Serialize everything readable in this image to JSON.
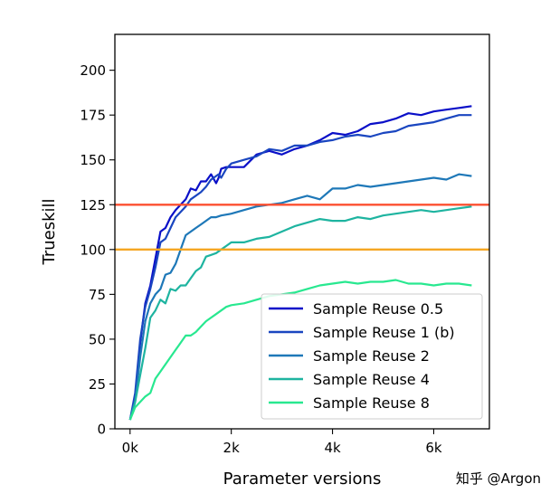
{
  "watermark": "知乎 @Argon",
  "chart_data": {
    "type": "line",
    "title": "",
    "xlabel": "Parameter versions",
    "ylabel": "Trueskill",
    "xlim": [
      -300,
      7100
    ],
    "ylim": [
      0,
      220
    ],
    "x_ticks": [
      0,
      2000,
      4000,
      6000
    ],
    "x_tick_labels": [
      "0k",
      "2k",
      "4k",
      "6k"
    ],
    "y_ticks": [
      0,
      25,
      50,
      75,
      100,
      125,
      150,
      175,
      200
    ],
    "y_tick_labels": [
      "0",
      "25",
      "50",
      "75",
      "100",
      "125",
      "150",
      "175",
      "200"
    ],
    "grid": false,
    "legend_position": "lower-right",
    "reference_lines": [
      {
        "y": 125,
        "color": "#fc4f30"
      },
      {
        "y": 100,
        "color": "#f5a623"
      }
    ],
    "series": [
      {
        "name": "Sample Reuse 0.5",
        "color": "#0a0fc8",
        "x": [
          0,
          100,
          200,
          300,
          400,
          500,
          600,
          700,
          800,
          900,
          1000,
          1100,
          1200,
          1300,
          1400,
          1500,
          1600,
          1700,
          1750,
          1800,
          1900,
          2000,
          2250,
          2500,
          2750,
          3000,
          3250,
          3500,
          3750,
          4000,
          4250,
          4500,
          4750,
          5000,
          5250,
          5500,
          5750,
          6000,
          6250,
          6500,
          6750
        ],
        "values": [
          5,
          18,
          48,
          70,
          80,
          95,
          110,
          112,
          118,
          122,
          125,
          128,
          134,
          133,
          138,
          138,
          142,
          137,
          140,
          145,
          146,
          146,
          146,
          153,
          155,
          153,
          156,
          158,
          161,
          165,
          164,
          166,
          170,
          171,
          173,
          176,
          175,
          177,
          178,
          179,
          180
        ]
      },
      {
        "name": "Sample Reuse 1 (b)",
        "color": "#1a46c0",
        "x": [
          0,
          100,
          200,
          300,
          400,
          500,
          600,
          700,
          800,
          900,
          1000,
          1100,
          1200,
          1400,
          1500,
          1600,
          1750,
          1800,
          1900,
          2000,
          2250,
          2500,
          2750,
          3000,
          3250,
          3500,
          3750,
          4000,
          4250,
          4500,
          4750,
          5000,
          5250,
          5500,
          5750,
          6000,
          6250,
          6500,
          6750
        ],
        "values": [
          5,
          20,
          50,
          68,
          78,
          90,
          104,
          106,
          112,
          118,
          121,
          124,
          128,
          132,
          135,
          139,
          142,
          140,
          145,
          148,
          150,
          152,
          156,
          155,
          158,
          158,
          160,
          161,
          163,
          164,
          163,
          165,
          166,
          169,
          170,
          171,
          173,
          175,
          175
        ]
      },
      {
        "name": "Sample Reuse 2",
        "color": "#1e78b8",
        "x": [
          0,
          100,
          200,
          300,
          400,
          500,
          600,
          700,
          800,
          900,
          1000,
          1100,
          1200,
          1300,
          1400,
          1500,
          1600,
          1700,
          1800,
          2000,
          2250,
          2500,
          2750,
          3000,
          3250,
          3500,
          3750,
          4000,
          4250,
          4500,
          4750,
          5000,
          5250,
          5500,
          5750,
          6000,
          6250,
          6500,
          6750
        ],
        "values": [
          5,
          15,
          40,
          60,
          70,
          75,
          78,
          86,
          87,
          92,
          100,
          108,
          110,
          112,
          114,
          116,
          118,
          118,
          119,
          120,
          122,
          124,
          125,
          126,
          128,
          130,
          128,
          134,
          134,
          136,
          135,
          136,
          137,
          138,
          139,
          140,
          139,
          142,
          141
        ]
      },
      {
        "name": "Sample Reuse 4",
        "color": "#1eb4a0",
        "x": [
          0,
          100,
          200,
          300,
          400,
          500,
          600,
          700,
          800,
          900,
          1000,
          1100,
          1200,
          1300,
          1400,
          1500,
          1600,
          1700,
          1800,
          1900,
          2000,
          2250,
          2500,
          2750,
          3000,
          3250,
          3500,
          3750,
          4000,
          4250,
          4500,
          4750,
          5000,
          5250,
          5500,
          5750,
          6000,
          6250,
          6500,
          6750
        ],
        "values": [
          5,
          15,
          30,
          45,
          62,
          66,
          72,
          70,
          78,
          77,
          80,
          80,
          84,
          88,
          90,
          96,
          97,
          98,
          100,
          102,
          104,
          104,
          106,
          107,
          110,
          113,
          115,
          117,
          116,
          116,
          118,
          117,
          119,
          120,
          121,
          122,
          121,
          122,
          123,
          124
        ]
      },
      {
        "name": "Sample Reuse 8",
        "color": "#28e890",
        "x": [
          0,
          100,
          200,
          300,
          400,
          500,
          600,
          700,
          800,
          900,
          1000,
          1100,
          1200,
          1300,
          1400,
          1500,
          1600,
          1700,
          1800,
          1900,
          2000,
          2250,
          2500,
          2750,
          3000,
          3250,
          3500,
          3750,
          4000,
          4250,
          4500,
          4750,
          5000,
          5250,
          5500,
          5750,
          6000,
          6250,
          6500,
          6750
        ],
        "values": [
          5,
          12,
          15,
          18,
          20,
          28,
          32,
          36,
          40,
          44,
          48,
          52,
          52,
          54,
          57,
          60,
          62,
          64,
          66,
          68,
          69,
          70,
          72,
          74,
          75,
          76,
          78,
          80,
          81,
          82,
          81,
          82,
          82,
          83,
          81,
          81,
          80,
          81,
          81,
          80
        ]
      }
    ]
  }
}
